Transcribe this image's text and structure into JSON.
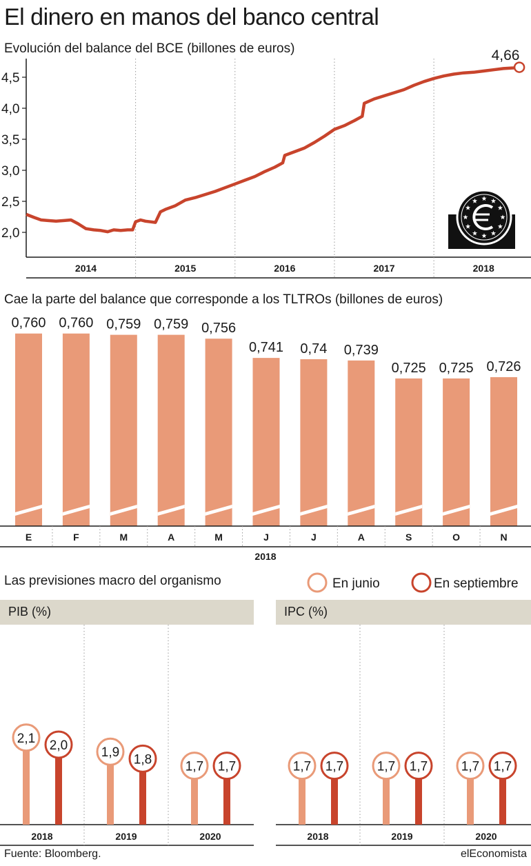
{
  "header": {
    "title": "El dinero en manos del banco central"
  },
  "balance_chart": {
    "subtitle": "Evolución del balance del BCE (billones de euros)",
    "end_label": "4,66",
    "icon": "euro-coin-icon"
  },
  "tltro_chart": {
    "subtitle": "Cae la parte del balance que corresponde a los TLTROs (billones de euros)",
    "year_label": "2018"
  },
  "forecasts": {
    "title": "Las previsiones macro del organismo",
    "legend_june": "En junio",
    "legend_sept": "En septiembre",
    "pib_label": "PIB (%)",
    "ipc_label": "IPC (%)"
  },
  "footer": {
    "source": "Fuente: Bloomberg.",
    "brand": "elEconomista"
  },
  "colors": {
    "line": "#c8442c",
    "bar": "#e99a78",
    "june": "#e99a78",
    "sept": "#c8442c",
    "band": "#dcd8cb"
  },
  "chart_data": [
    {
      "type": "line",
      "title": "Evolución del balance del BCE (billones de euros)",
      "ylim": [
        1.6,
        4.8
      ],
      "yticks": [
        "2,0",
        "2,5",
        "3,0",
        "3,5",
        "4,0",
        "4,5"
      ],
      "ytick_values": [
        2.0,
        2.5,
        3.0,
        3.5,
        4.0,
        4.5
      ],
      "xlim": [
        2013.9,
        2018.88
      ],
      "xticks": [
        "2014",
        "2015",
        "2016",
        "2017",
        "2018"
      ],
      "xtick_positions": [
        2014.5,
        2015.5,
        2016.5,
        2017.5,
        2018.5
      ],
      "x": [
        2013.9,
        2013.98,
        2014.05,
        2014.12,
        2014.2,
        2014.28,
        2014.35,
        2014.42,
        2014.5,
        2014.58,
        2014.65,
        2014.72,
        2014.78,
        2014.85,
        2014.92,
        2014.97,
        2015.0,
        2015.05,
        2015.1,
        2015.15,
        2015.2,
        2015.25,
        2015.3,
        2015.4,
        2015.5,
        2015.6,
        2015.7,
        2015.8,
        2015.9,
        2016.0,
        2016.1,
        2016.2,
        2016.3,
        2016.4,
        2016.48,
        2016.5,
        2016.6,
        2016.7,
        2016.8,
        2016.9,
        2017.0,
        2017.1,
        2017.2,
        2017.28,
        2017.3,
        2017.4,
        2017.5,
        2017.6,
        2017.7,
        2017.8,
        2017.9,
        2018.0,
        2018.1,
        2018.2,
        2018.3,
        2018.4,
        2018.5,
        2018.6,
        2018.7,
        2018.8,
        2018.86
      ],
      "values": [
        2.29,
        2.24,
        2.2,
        2.19,
        2.18,
        2.19,
        2.2,
        2.14,
        2.06,
        2.04,
        2.03,
        2.01,
        2.04,
        2.03,
        2.04,
        2.04,
        2.17,
        2.2,
        2.18,
        2.17,
        2.16,
        2.33,
        2.37,
        2.43,
        2.52,
        2.56,
        2.61,
        2.66,
        2.72,
        2.78,
        2.84,
        2.9,
        2.98,
        3.05,
        3.12,
        3.24,
        3.3,
        3.36,
        3.45,
        3.55,
        3.66,
        3.72,
        3.8,
        3.87,
        4.08,
        4.15,
        4.2,
        4.25,
        4.3,
        4.37,
        4.43,
        4.48,
        4.52,
        4.55,
        4.57,
        4.58,
        4.6,
        4.62,
        4.64,
        4.65,
        4.66
      ]
    },
    {
      "type": "bar",
      "title": "Cae la parte del balance que corresponde a los TLTROs (billones de euros)",
      "xlabel": "2018",
      "categories": [
        "E",
        "F",
        "M",
        "A",
        "M",
        "J",
        "J",
        "A",
        "S",
        "O",
        "N"
      ],
      "values": [
        0.76,
        0.76,
        0.759,
        0.759,
        0.756,
        0.741,
        0.74,
        0.739,
        0.725,
        0.725,
        0.726
      ],
      "labels": [
        "0,760",
        "0,760",
        "0,759",
        "0,759",
        "0,756",
        "0,741",
        "0,74",
        "0,739",
        "0,725",
        "0,725",
        "0,726"
      ],
      "ylim": [
        0.61,
        0.762
      ],
      "axis_break": true
    },
    {
      "type": "bar",
      "title": "PIB (%)",
      "categories": [
        "2018",
        "2019",
        "2020"
      ],
      "series": [
        {
          "name": "En junio",
          "values": [
            2.1,
            1.9,
            1.7
          ],
          "labels": [
            "2,1",
            "1,9",
            "1,7"
          ]
        },
        {
          "name": "En septiembre",
          "values": [
            2.0,
            1.8,
            1.7
          ],
          "labels": [
            "2,0",
            "1,8",
            "1,7"
          ]
        }
      ]
    },
    {
      "type": "bar",
      "title": "IPC (%)",
      "categories": [
        "2018",
        "2019",
        "2020"
      ],
      "series": [
        {
          "name": "En junio",
          "values": [
            1.7,
            1.7,
            1.7
          ],
          "labels": [
            "1,7",
            "1,7",
            "1,7"
          ]
        },
        {
          "name": "En septiembre",
          "values": [
            1.7,
            1.7,
            1.7
          ],
          "labels": [
            "1,7",
            "1,7",
            "1,7"
          ]
        }
      ]
    }
  ]
}
